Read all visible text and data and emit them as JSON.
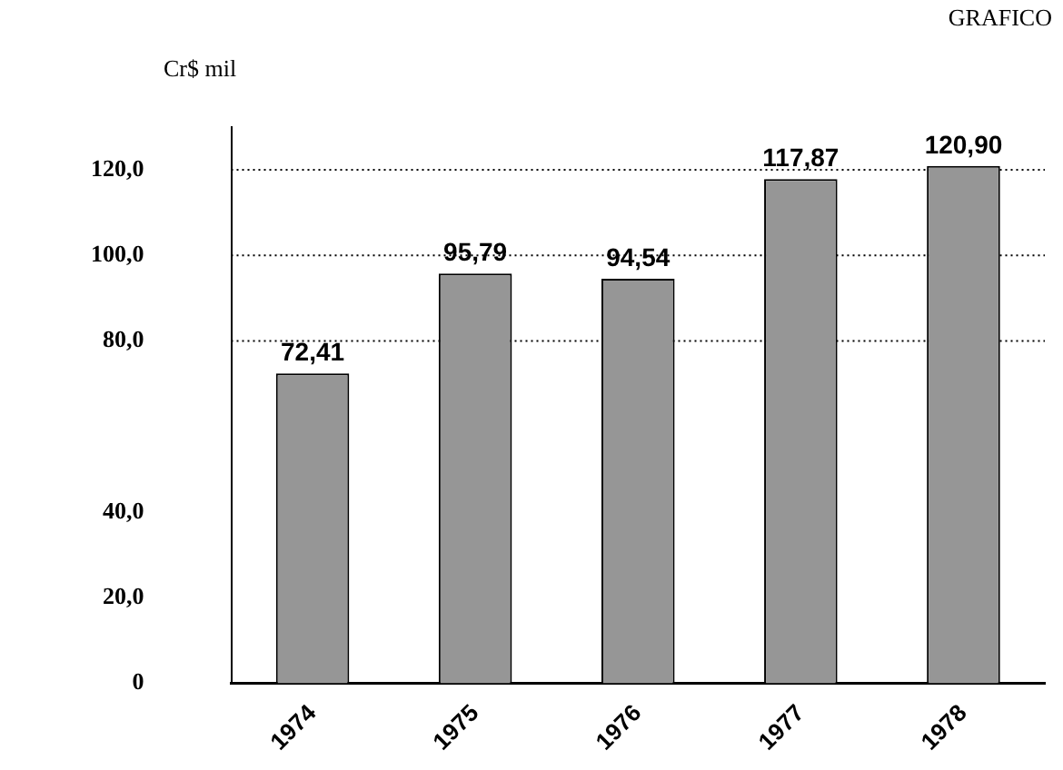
{
  "chart_data": {
    "type": "bar",
    "title": "GRAFICO",
    "ylabel": "Cr$ mil",
    "categories": [
      "1974",
      "1975",
      "1976",
      "1977",
      "1978"
    ],
    "values": [
      72.41,
      95.79,
      94.54,
      117.87,
      120.9
    ],
    "value_labels": [
      "72,41",
      "95,79",
      "94,54",
      "117,87",
      "120,90"
    ],
    "color": "#969696",
    "ylim": [
      0,
      130
    ],
    "yticks": [
      {
        "value": 0,
        "label": "0"
      },
      {
        "value": 20,
        "label": "20,0"
      },
      {
        "value": 40,
        "label": "40,0"
      },
      {
        "value": 80,
        "label": "80,0"
      },
      {
        "value": 100,
        "label": "100,0"
      },
      {
        "value": 120,
        "label": "120,0"
      }
    ],
    "ref_lines": [
      {
        "axis": "y",
        "value": 80,
        "line_style": "dotted",
        "color": "#000000"
      },
      {
        "axis": "y",
        "value": 100,
        "line_style": "dotted",
        "color": "#000000"
      },
      {
        "axis": "y",
        "value": 120,
        "line_style": "dotted",
        "color": "#000000"
      }
    ],
    "grid": false,
    "legend": false
  }
}
